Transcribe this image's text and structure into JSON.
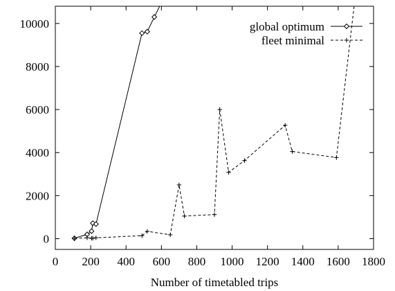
{
  "chart_data": {
    "type": "line",
    "title": "",
    "xlabel": "Number of timetabled trips",
    "ylabel": "",
    "xlim": [
      0,
      1800
    ],
    "ylim": [
      -500,
      10800
    ],
    "xticks": [
      0,
      200,
      400,
      600,
      800,
      1000,
      1200,
      1400,
      1600,
      1800
    ],
    "yticks": [
      0,
      2000,
      4000,
      6000,
      8000,
      10000
    ],
    "grid": false,
    "legend_position": "top-right",
    "series": [
      {
        "name": "global optimum",
        "line_style": "solid",
        "marker": "diamond",
        "color": "#000000",
        "x": [
          108,
          180,
          205,
          212,
          230,
          490,
          520,
          560,
          590
        ],
        "y": [
          20,
          200,
          350,
          720,
          680,
          9550,
          9620,
          10300,
          10800
        ]
      },
      {
        "name": "fleet minimal",
        "line_style": "dashed",
        "marker": "plus",
        "color": "#000000",
        "x": [
          108,
          180,
          205,
          212,
          230,
          490,
          520,
          650,
          700,
          730,
          900,
          930,
          980,
          1070,
          1300,
          1340,
          1590,
          1690
        ],
        "y": [
          20,
          40,
          20,
          20,
          40,
          140,
          340,
          180,
          2500,
          1050,
          1120,
          6000,
          3080,
          3630,
          5270,
          4050,
          3770,
          10800
        ]
      }
    ]
  }
}
